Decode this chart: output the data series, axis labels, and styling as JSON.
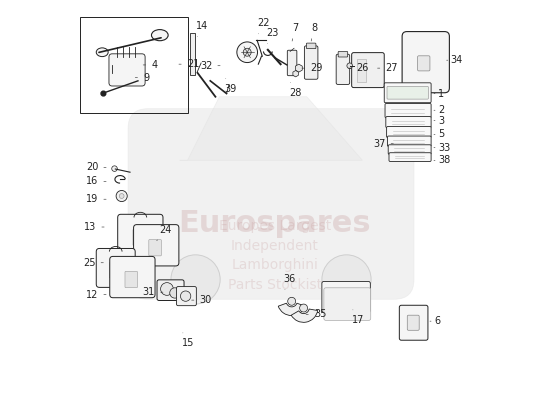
{
  "bg_color": "#ffffff",
  "line_color": "#222222",
  "label_fontsize": 7,
  "label_positions": {
    "1": [
      0.9,
      0.768,
      0.01,
      0.0
    ],
    "2": [
      0.9,
      0.726,
      0.01,
      0.0
    ],
    "3": [
      0.9,
      0.7,
      0.01,
      0.0
    ],
    "4": [
      0.168,
      0.84,
      0.02,
      0.0
    ],
    "5": [
      0.9,
      0.665,
      0.01,
      0.0
    ],
    "6": [
      0.89,
      0.195,
      0.01,
      0.0
    ],
    "7": [
      0.543,
      0.9,
      0.0,
      0.02
    ],
    "8": [
      0.591,
      0.9,
      0.0,
      0.02
    ],
    "9": [
      0.148,
      0.808,
      0.02,
      0.0
    ],
    "12": [
      0.075,
      0.262,
      -0.02,
      0.0
    ],
    "13": [
      0.07,
      0.432,
      -0.02,
      0.0
    ],
    "14": [
      0.302,
      0.905,
      0.0,
      0.02
    ],
    "15": [
      0.265,
      0.172,
      0.0,
      -0.02
    ],
    "16": [
      0.075,
      0.547,
      -0.02,
      0.0
    ],
    "17": [
      0.693,
      0.23,
      0.0,
      -0.02
    ],
    "19": [
      0.075,
      0.502,
      -0.02,
      0.0
    ],
    "20": [
      0.075,
      0.582,
      -0.02,
      0.0
    ],
    "21": [
      0.258,
      0.842,
      0.02,
      0.0
    ],
    "22": [
      0.455,
      0.912,
      0.0,
      0.02
    ],
    "23": [
      0.478,
      0.888,
      0.0,
      0.02
    ],
    "24": [
      0.198,
      0.392,
      0.01,
      0.02
    ],
    "25": [
      0.068,
      0.342,
      -0.02,
      0.0
    ],
    "26": [
      0.685,
      0.832,
      0.02,
      0.0
    ],
    "27": [
      0.758,
      0.832,
      0.02,
      0.0
    ],
    "28": [
      0.536,
      0.802,
      0.0,
      -0.02
    ],
    "29": [
      0.568,
      0.832,
      0.02,
      0.0
    ],
    "30": [
      0.29,
      0.248,
      0.02,
      0.0
    ],
    "31": [
      0.218,
      0.268,
      -0.02,
      0.0
    ],
    "32": [
      0.362,
      0.838,
      -0.02,
      0.0
    ],
    "33": [
      0.9,
      0.632,
      0.01,
      0.0
    ],
    "34": [
      0.932,
      0.852,
      0.01,
      0.0
    ],
    "35": [
      0.578,
      0.212,
      0.02,
      0.0
    ],
    "36": [
      0.522,
      0.268,
      0.0,
      0.02
    ],
    "37": [
      0.798,
      0.642,
      -0.02,
      0.0
    ],
    "38": [
      0.9,
      0.6,
      0.01,
      0.0
    ],
    "39": [
      0.373,
      0.812,
      0.0,
      -0.02
    ]
  }
}
